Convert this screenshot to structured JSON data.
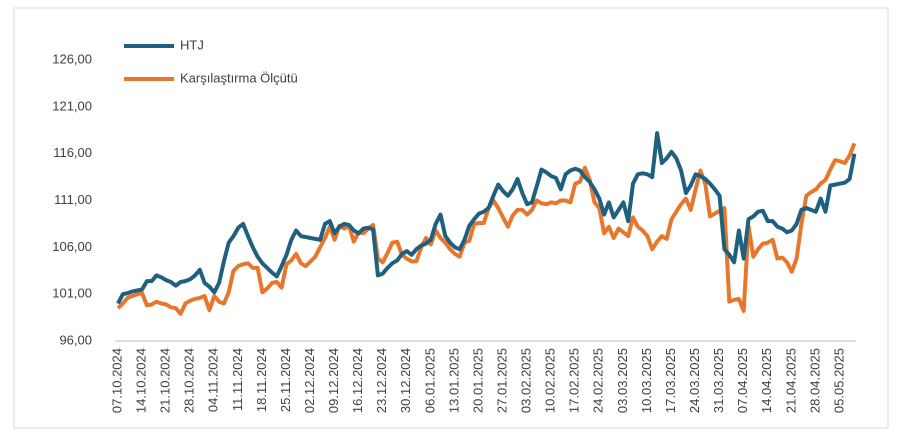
{
  "chart_data": {
    "type": "line",
    "categories": [
      "07.10.2024",
      null,
      null,
      null,
      null,
      "14.10.2024",
      null,
      null,
      null,
      null,
      "21.10.2024",
      null,
      null,
      null,
      null,
      "28.10.2024",
      null,
      null,
      null,
      null,
      "04.11.2024",
      null,
      null,
      null,
      null,
      "11.11.2024",
      null,
      null,
      null,
      null,
      "18.11.2024",
      null,
      null,
      null,
      null,
      "25.11.2024",
      null,
      null,
      null,
      null,
      "02.12.2024",
      null,
      null,
      null,
      null,
      "09.12.2024",
      null,
      null,
      null,
      null,
      "16.12.2024",
      null,
      null,
      null,
      null,
      "23.12.2024",
      null,
      null,
      null,
      null,
      "30.12.2024",
      null,
      null,
      null,
      null,
      "06.01.2025",
      null,
      null,
      null,
      null,
      "13.01.2025",
      null,
      null,
      null,
      null,
      "20.01.2025",
      null,
      null,
      null,
      null,
      "27.01.2025",
      null,
      null,
      null,
      null,
      "03.02.2025",
      null,
      null,
      null,
      null,
      "10.02.2025",
      null,
      null,
      null,
      null,
      "17.02.2025",
      null,
      null,
      null,
      null,
      "24.02.2025",
      null,
      null,
      null,
      null,
      "03.03.2025",
      null,
      null,
      null,
      null,
      "10.03.2025",
      null,
      null,
      null,
      null,
      "17.03.2025",
      null,
      null,
      null,
      null,
      "24.03.2025",
      null,
      null,
      null,
      null,
      "31.03.2025",
      null,
      null,
      null,
      null,
      "07.04.2025",
      null,
      null,
      null,
      null,
      "14.04.2025",
      null,
      null,
      null,
      null,
      "21.04.2025",
      null,
      null,
      null,
      null,
      "28.04.2025",
      null,
      null,
      null,
      null,
      "05.05.2025",
      null,
      null,
      null
    ],
    "series": [
      {
        "name": "HTJ",
        "color": "#1f5f7f",
        "values": [
          100.0,
          101.0,
          101.1,
          101.3,
          101.4,
          101.5,
          102.4,
          102.4,
          103.0,
          102.8,
          102.5,
          102.3,
          101.9,
          102.3,
          102.4,
          102.6,
          103.0,
          103.6,
          102.2,
          101.8,
          101.2,
          102.2,
          104.5,
          106.5,
          107.2,
          108.1,
          108.5,
          107.2,
          106.0,
          105.0,
          104.3,
          103.8,
          103.3,
          102.9,
          104.0,
          105.2,
          106.8,
          107.8,
          107.2,
          107.1,
          107.0,
          106.9,
          106.8,
          108.5,
          108.8,
          107.5,
          108.2,
          108.5,
          108.4,
          107.8,
          107.5,
          108.0,
          108.1,
          107.9,
          103.0,
          103.2,
          103.8,
          104.3,
          104.6,
          105.3,
          105.6,
          105.2,
          105.8,
          106.2,
          106.4,
          106.8,
          108.5,
          109.5,
          107.2,
          106.5,
          106.0,
          105.8,
          106.8,
          108.3,
          109.0,
          109.6,
          109.8,
          110.2,
          111.5,
          112.7,
          112.0,
          111.5,
          112.2,
          113.3,
          111.8,
          110.6,
          110.8,
          112.5,
          114.3,
          114.0,
          113.6,
          113.4,
          112.2,
          113.8,
          114.2,
          114.4,
          114.2,
          113.5,
          113.0,
          112.2,
          111.2,
          109.5,
          110.8,
          109.2,
          110.0,
          110.8,
          108.8,
          112.8,
          113.8,
          113.9,
          113.8,
          113.5,
          118.2,
          115.0,
          115.5,
          116.2,
          115.5,
          114.2,
          111.8,
          112.6,
          113.8,
          113.6,
          113.3,
          112.8,
          112.2,
          111.5,
          105.8,
          105.2,
          104.4,
          107.8,
          104.8,
          109.0,
          109.3,
          109.8,
          109.9,
          108.8,
          108.8,
          108.2,
          108.0,
          107.6,
          107.8,
          108.5,
          110.0,
          110.2,
          110.0,
          109.8,
          111.2,
          109.8,
          112.6,
          112.7,
          112.8,
          112.9,
          113.3,
          116.0
        ]
      },
      {
        "name": "Karşılaştırma Ölçütü",
        "color": "#e8772e",
        "values": [
          99.5,
          100.0,
          100.6,
          100.8,
          101.0,
          101.1,
          99.8,
          99.9,
          100.2,
          100.0,
          99.9,
          99.6,
          99.5,
          98.9,
          100.0,
          100.3,
          100.5,
          100.6,
          100.8,
          99.3,
          100.8,
          100.2,
          100.0,
          101.2,
          103.5,
          104.0,
          104.2,
          104.3,
          103.8,
          103.8,
          101.2,
          101.6,
          102.2,
          102.3,
          101.7,
          104.2,
          104.6,
          105.3,
          104.3,
          104.0,
          104.5,
          105.0,
          106.0,
          107.0,
          108.2,
          106.8,
          108.3,
          108.0,
          108.3,
          106.6,
          107.6,
          107.5,
          108.0,
          108.4,
          104.8,
          104.4,
          105.4,
          106.5,
          106.6,
          105.2,
          104.8,
          104.5,
          104.5,
          106.0,
          107.0,
          106.3,
          107.8,
          107.0,
          106.5,
          105.8,
          105.3,
          105.0,
          106.5,
          106.7,
          108.5,
          108.6,
          108.6,
          110.2,
          111.0,
          110.2,
          109.2,
          108.2,
          109.4,
          110.0,
          110.0,
          109.5,
          110.0,
          111.0,
          110.7,
          110.6,
          110.8,
          110.7,
          111.0,
          111.0,
          110.8,
          112.8,
          113.0,
          114.5,
          113.2,
          110.8,
          110.2,
          107.5,
          108.2,
          107.0,
          108.0,
          107.6,
          107.2,
          109.2,
          108.2,
          107.8,
          107.2,
          105.8,
          106.6,
          107.2,
          106.9,
          109.0,
          109.8,
          110.6,
          111.2,
          110.0,
          112.2,
          114.2,
          112.8,
          109.3,
          109.6,
          109.9,
          110.2,
          100.2,
          100.4,
          100.5,
          99.2,
          108.3,
          105.0,
          105.8,
          106.4,
          106.5,
          106.8,
          104.8,
          104.9,
          104.4,
          103.4,
          104.8,
          108.5,
          111.5,
          111.9,
          112.2,
          112.8,
          113.2,
          114.3,
          115.3,
          115.2,
          115.0,
          115.8,
          117.1
        ]
      }
    ],
    "ylim": [
      96,
      126
    ],
    "yticks": [
      {
        "value": 96,
        "label": "96,00"
      },
      {
        "value": 101,
        "label": "101,00"
      },
      {
        "value": 106,
        "label": "106,00"
      },
      {
        "value": 111,
        "label": "111,00"
      },
      {
        "value": 116,
        "label": "116,00"
      },
      {
        "value": 121,
        "label": "121,00"
      },
      {
        "value": 126,
        "label": "126,00"
      }
    ],
    "grid": false,
    "legend": "top-left"
  }
}
